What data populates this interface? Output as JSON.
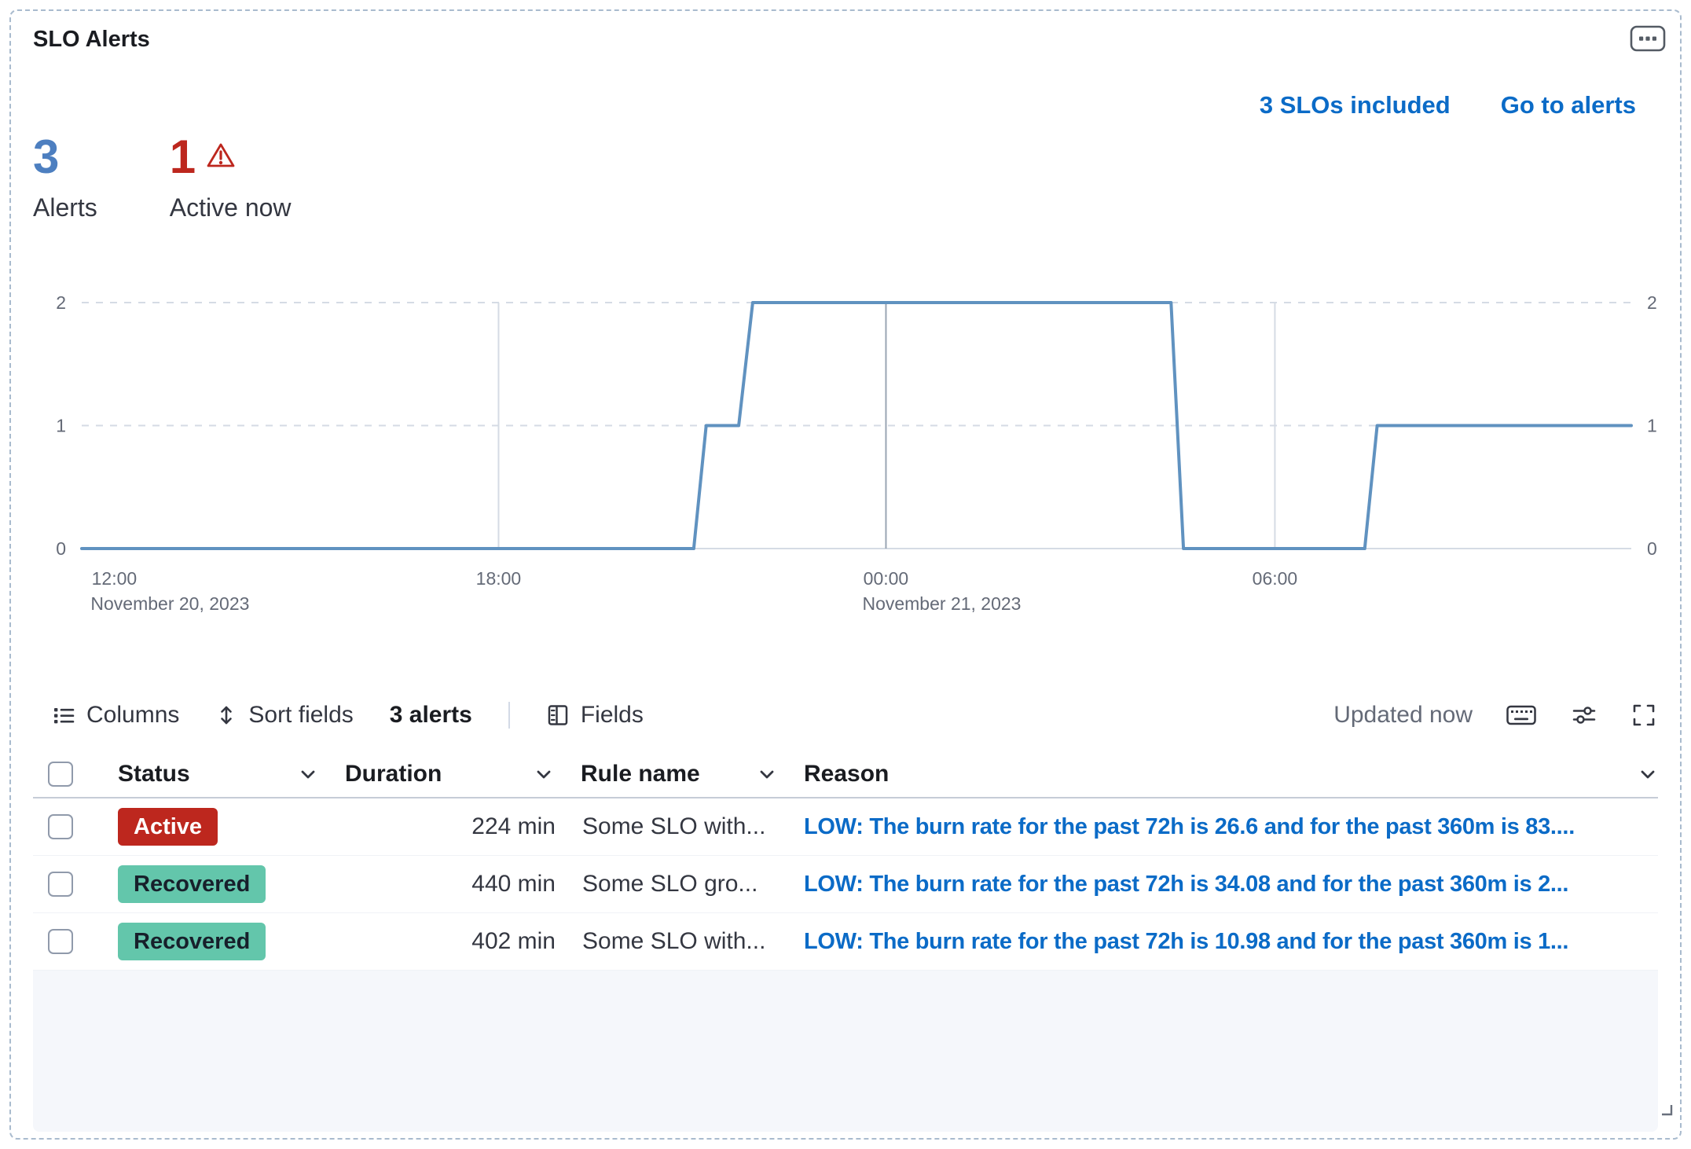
{
  "panel": {
    "title": "SLO Alerts"
  },
  "header": {
    "links": [
      {
        "label": "3 SLOs included"
      },
      {
        "label": "Go to alerts"
      }
    ]
  },
  "stats": [
    {
      "value": "3",
      "label": "Alerts"
    },
    {
      "value": "1",
      "label": "Active now",
      "has_warning_icon": true
    }
  ],
  "chart_data": {
    "type": "line",
    "line_style": "step",
    "series_name": "Alert count",
    "title": "",
    "xlabel": "",
    "ylabel": "",
    "line_color": "#6092C0",
    "ylim": [
      0,
      2
    ],
    "yticks": [
      0,
      1,
      2
    ],
    "y_axis_sides": "both",
    "legend": "none",
    "grid": "horizontal dashed at 1 and 2, solid baseline at 0; vertical solid lines at 18:00, 00:00, 06:00",
    "xticks": [
      {
        "pos": 0.021,
        "label": "12:00",
        "sublabel": "November 20, 2023",
        "grid": false,
        "major": false
      },
      {
        "pos": 0.269,
        "label": "18:00",
        "grid": true,
        "major": false
      },
      {
        "pos": 0.519,
        "label": "00:00",
        "sublabel": "November 21, 2023",
        "grid": true,
        "major": true
      },
      {
        "pos": 0.77,
        "label": "06:00",
        "grid": true,
        "major": false
      }
    ],
    "points": [
      [
        0.0,
        0
      ],
      [
        0.395,
        0
      ],
      [
        0.403,
        1
      ],
      [
        0.424,
        1
      ],
      [
        0.433,
        2
      ],
      [
        0.703,
        2
      ],
      [
        0.711,
        0
      ],
      [
        0.828,
        0
      ],
      [
        0.836,
        1
      ],
      [
        1.0,
        1
      ]
    ],
    "reading": "0 alerts from ~12:00 Nov 20 until ~21:00, brief step to 1, then 2 alerts from ~21:30 Nov 20 to ~04:30 Nov 21, back to 0 until ~07:30, then 1 alert through end (~11:30 Nov 21)"
  },
  "toolbar": {
    "columns": "Columns",
    "sort_fields": "Sort fields",
    "alert_count": "3 alerts",
    "fields": "Fields",
    "updated": "Updated now"
  },
  "table": {
    "columns": [
      {
        "label": "Status"
      },
      {
        "label": "Duration"
      },
      {
        "label": "Rule name"
      },
      {
        "label": "Reason"
      }
    ],
    "rows": [
      {
        "status": "Active",
        "badge_type": "danger",
        "duration": "224 min",
        "rule_name": "Some SLO with...",
        "reason": "LOW: The burn rate for the past 72h is 26.6 and for the past 360m is 83...."
      },
      {
        "status": "Recovered",
        "badge_type": "success",
        "duration": "440 min",
        "rule_name": "Some SLO gro...",
        "reason": "LOW: The burn rate for the past 72h is 34.08 and for the past 360m is 2..."
      },
      {
        "status": "Recovered",
        "badge_type": "success",
        "duration": "402 min",
        "rule_name": "Some SLO with...",
        "reason": "LOW: The burn rate for the past 72h is 10.98 and for the past 360m is 1..."
      }
    ]
  },
  "colors": {
    "link_blue": "#0b6bc7",
    "stat_blue": "#4d7fc0",
    "danger_red": "#bd271e",
    "success_badge": "#63c6ab",
    "chart_line": "#6092C0",
    "panel_dashed_border": "#a9bbce"
  },
  "icons": {
    "panel_options": "boxes-horizontal-icon",
    "warning": "warning-triangle-icon",
    "columns": "list-icon",
    "sort": "up-down-arrow-icon",
    "fields": "fields-panel-icon",
    "keyboard": "keyboard-icon",
    "controls": "sliders-icon",
    "fullscreen": "fullscreen-corners-icon",
    "chevron": "chevron-down-icon",
    "resize": "resize-corner-icon"
  }
}
